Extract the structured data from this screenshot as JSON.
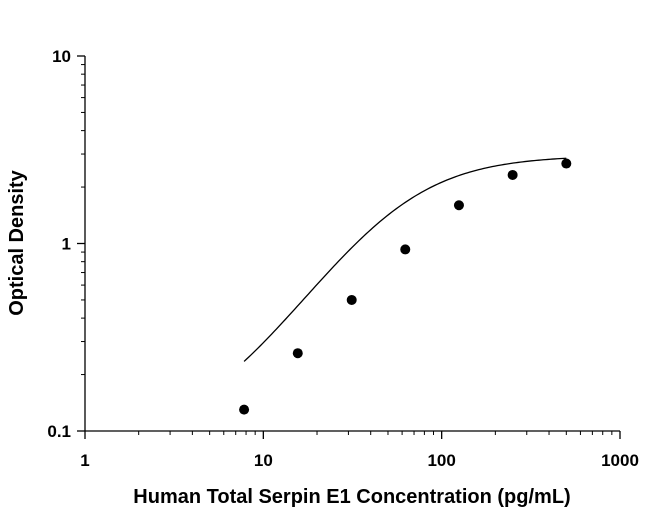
{
  "chart_data": {
    "type": "scatter",
    "title": "",
    "xlabel": "Human Total Serpin E1 Concentration (pg/mL)",
    "ylabel": "Optical Density",
    "xscale": "log",
    "yscale": "log",
    "xlim": [
      1,
      1000
    ],
    "ylim": [
      0.1,
      10
    ],
    "x_ticks": [
      "1",
      "10",
      "100",
      "1000"
    ],
    "y_ticks": [
      "0.1",
      "1",
      "10"
    ],
    "grid": false,
    "legend": "none",
    "series": [
      {
        "x": [
          7.8,
          15.6,
          31.3,
          62.5,
          125,
          250,
          500
        ],
        "y": [
          0.13,
          0.26,
          0.5,
          0.93,
          1.6,
          2.32,
          2.67
        ]
      }
    ],
    "fit_curve": {
      "type": "4PL",
      "x_range": [
        7.8,
        500
      ],
      "params": {
        "bottom": 0.09,
        "top": 2.95,
        "ec50": 55,
        "hill": 1.5
      }
    },
    "colors": {
      "points": "#000000",
      "curve": "#000000",
      "axes": "#000000"
    }
  }
}
